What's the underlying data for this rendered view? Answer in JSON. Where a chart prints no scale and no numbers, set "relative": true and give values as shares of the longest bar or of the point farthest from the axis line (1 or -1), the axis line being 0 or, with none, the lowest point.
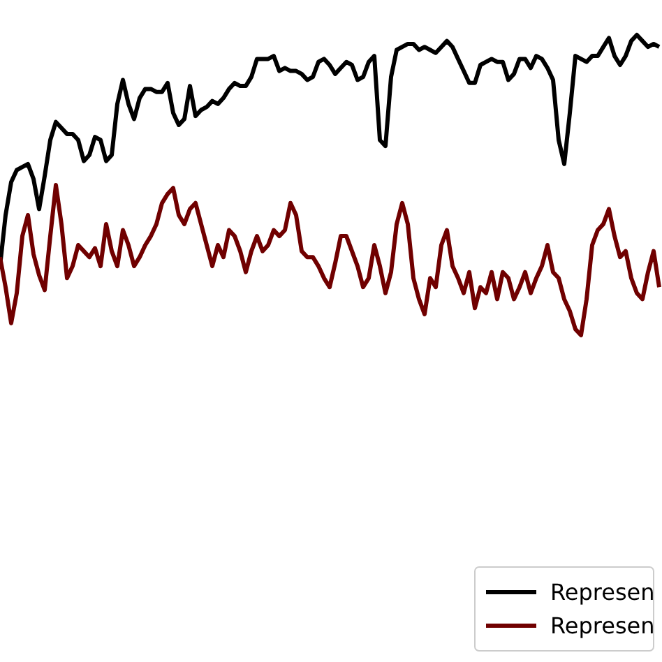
{
  "chart_data": {
    "type": "line",
    "relative": true,
    "legend": "bottom right",
    "line_style": "solid",
    "marker": "none",
    "grid": false,
    "categories": [
      null,
      null,
      null,
      null,
      null,
      null,
      null,
      null,
      null,
      null,
      null,
      null,
      null,
      null,
      null,
      null,
      null,
      null,
      null,
      null,
      null,
      null,
      null,
      null,
      null,
      null,
      null,
      null,
      null,
      null,
      null,
      null,
      null,
      null,
      null,
      null,
      null,
      null,
      null,
      null,
      null,
      null,
      null,
      null,
      null,
      null,
      null,
      null,
      null,
      null,
      null,
      null,
      null,
      null,
      null,
      null,
      null,
      null,
      null,
      null,
      null,
      null,
      null,
      null,
      null,
      null,
      null,
      null,
      null,
      null,
      null,
      null,
      null,
      null,
      null,
      null,
      null,
      null,
      null,
      null,
      null,
      null,
      null,
      null,
      null,
      null,
      null,
      null,
      null,
      null,
      null,
      null,
      null,
      null,
      null,
      null,
      null,
      null,
      null,
      null,
      null,
      null,
      null,
      null,
      null,
      null,
      null,
      null,
      null,
      null,
      null,
      null,
      null,
      null,
      null,
      null,
      null,
      null,
      null
    ],
    "series": [
      {
        "name": "Represen",
        "color": "#000000",
        "values": [
          0.23,
          0.4,
          0.51,
          0.55,
          0.56,
          0.57,
          0.52,
          0.42,
          0.53,
          0.65,
          0.71,
          0.69,
          0.67,
          0.67,
          0.65,
          0.58,
          0.6,
          0.66,
          0.65,
          0.58,
          0.6,
          0.77,
          0.85,
          0.77,
          0.72,
          0.79,
          0.82,
          0.82,
          0.81,
          0.81,
          0.84,
          0.74,
          0.7,
          0.72,
          0.83,
          0.73,
          0.75,
          0.76,
          0.78,
          0.77,
          0.79,
          0.82,
          0.84,
          0.83,
          0.83,
          0.86,
          0.92,
          0.92,
          0.92,
          0.93,
          0.88,
          0.89,
          0.88,
          0.88,
          0.87,
          0.85,
          0.86,
          0.91,
          0.92,
          0.9,
          0.87,
          0.89,
          0.91,
          0.9,
          0.85,
          0.86,
          0.91,
          0.93,
          0.65,
          0.63,
          0.86,
          0.95,
          0.96,
          0.97,
          0.97,
          0.95,
          0.96,
          0.95,
          0.94,
          0.96,
          0.98,
          0.96,
          0.92,
          0.88,
          0.84,
          0.84,
          0.9,
          0.91,
          0.92,
          0.91,
          0.91,
          0.85,
          0.87,
          0.92,
          0.92,
          0.89,
          0.93,
          0.92,
          0.89,
          0.85,
          0.65,
          0.57,
          0.74,
          0.93,
          0.92,
          0.91,
          0.93,
          0.93,
          0.96,
          0.99,
          0.93,
          0.9,
          0.93,
          0.98,
          1,
          0.98,
          0.96,
          0.97,
          0.96
        ]
      },
      {
        "name": "Represen",
        "color": "#700000",
        "values": [
          0.26,
          0.16,
          0.04,
          0.14,
          0.33,
          0.4,
          0.27,
          0.2,
          0.15,
          0.33,
          0.5,
          0.37,
          0.19,
          0.23,
          0.3,
          0.28,
          0.26,
          0.29,
          0.23,
          0.37,
          0.28,
          0.23,
          0.35,
          0.3,
          0.23,
          0.26,
          0.3,
          0.33,
          0.37,
          0.44,
          0.47,
          0.49,
          0.4,
          0.37,
          0.42,
          0.44,
          0.37,
          0.3,
          0.23,
          0.3,
          0.26,
          0.35,
          0.33,
          0.28,
          0.21,
          0.28,
          0.33,
          0.28,
          0.3,
          0.35,
          0.33,
          0.35,
          0.44,
          0.4,
          0.28,
          0.26,
          0.26,
          0.23,
          0.19,
          0.16,
          0.24,
          0.33,
          0.33,
          0.28,
          0.23,
          0.16,
          0.19,
          0.3,
          0.23,
          0.14,
          0.21,
          0.37,
          0.44,
          0.37,
          0.19,
          0.12,
          0.07,
          0.19,
          0.16,
          0.3,
          0.35,
          0.23,
          0.19,
          0.14,
          0.21,
          0.09,
          0.16,
          0.14,
          0.21,
          0.12,
          0.21,
          0.19,
          0.12,
          0.16,
          0.21,
          0.14,
          0.19,
          0.23,
          0.3,
          0.21,
          0.19,
          0.12,
          0.08,
          0.02,
          0,
          0.12,
          0.3,
          0.35,
          0.37,
          0.42,
          0.33,
          0.26,
          0.28,
          0.19,
          0.14,
          0.12,
          0.21,
          0.28,
          0.16
        ]
      }
    ]
  }
}
